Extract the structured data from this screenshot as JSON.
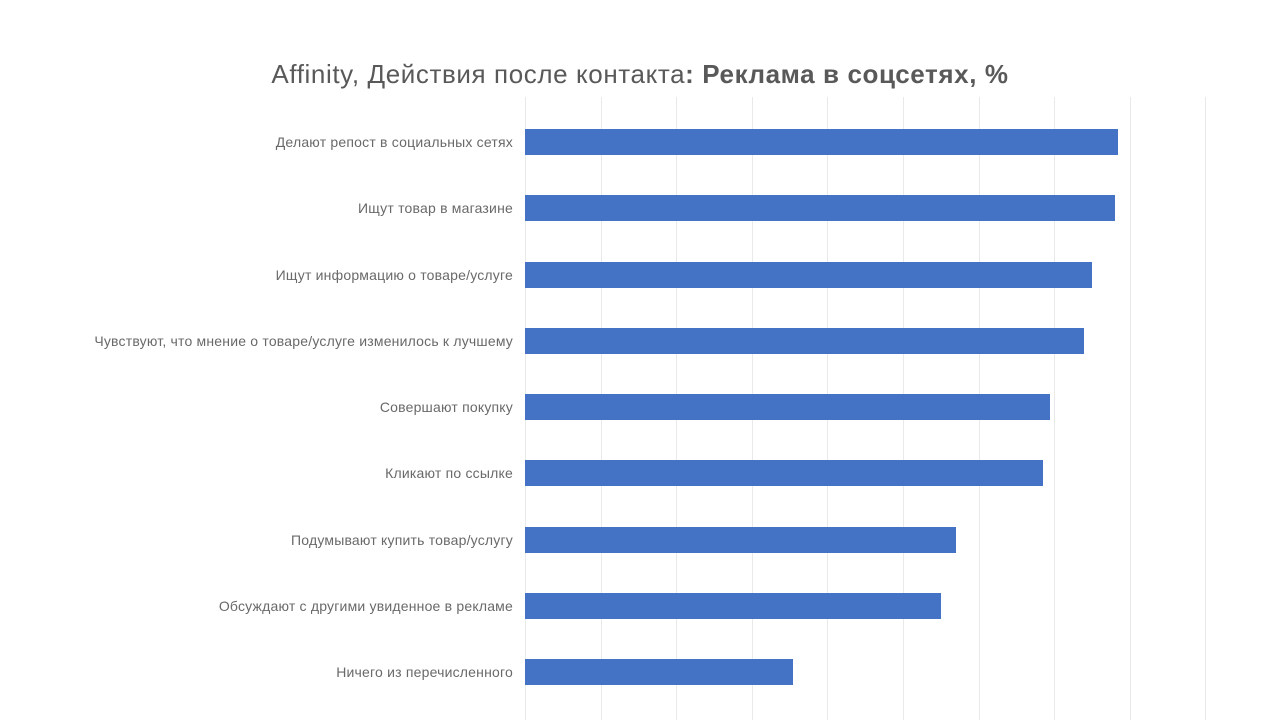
{
  "title": {
    "normal": "Affinity, Действия после контакта",
    "bold": ": Реклама в соцсетях, %"
  },
  "chart_data": {
    "type": "bar",
    "orientation": "horizontal",
    "title": "Affinity, Действия после контакта: Реклама в соцсетях, %",
    "categories": [
      "Делают репост в социальных сетях",
      "Ищут товар в магазине",
      "Ищут информацию о товаре/услуге",
      "Чувствуют, что мнение о товаре/услуге изменилось к лучшему",
      "Совершают покупку",
      "Кликают по ссылке",
      "Подумывают купить товар/услугу",
      "Обсуждают с другими увиденное в рекламе",
      "Ничего из перечисленного"
    ],
    "values": [
      78.5,
      78,
      75,
      74,
      69.5,
      68.5,
      57,
      55,
      35.5
    ],
    "unit": "%",
    "xlim": [
      0,
      100
    ],
    "grid": true,
    "grid_interval": 10,
    "tick_labels_visible": false,
    "data_labels_visible": false,
    "legend": "none",
    "bar_color": "#4472C4",
    "gridline_color": "#e9e9e9",
    "label_color": "#696969",
    "title_color": "#595959"
  }
}
